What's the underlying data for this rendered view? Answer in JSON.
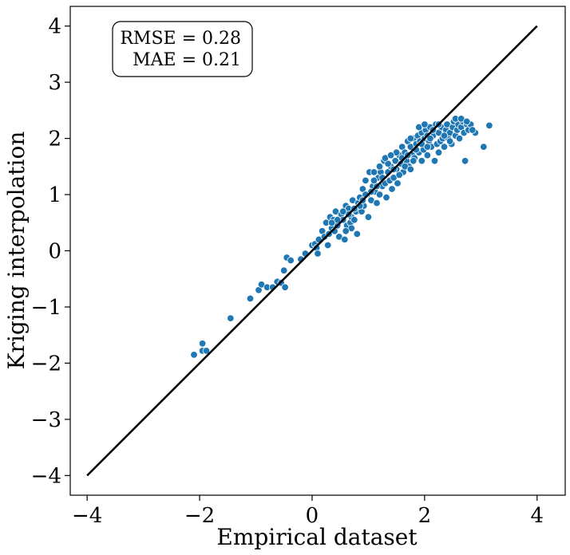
{
  "chart_data": {
    "type": "scatter",
    "xlabel": "Empirical dataset",
    "ylabel": "Kriging interpolation",
    "xlim": [
      -4.3,
      4.5
    ],
    "ylim": [
      -4.35,
      4.35
    ],
    "x_ticks": [
      -4,
      -2,
      0,
      2,
      4
    ],
    "y_ticks": [
      -4,
      -3,
      -2,
      -1,
      0,
      1,
      2,
      3,
      4
    ],
    "x_tick_labels": [
      "−4",
      "−2",
      "0",
      "2",
      "4"
    ],
    "y_tick_labels": [
      "−4",
      "−3",
      "−2",
      "−1",
      "0",
      "1",
      "2",
      "3",
      "4"
    ],
    "grid": false,
    "identity_line": {
      "from": [
        -4,
        -4
      ],
      "to": [
        4,
        4
      ],
      "color": "#000000"
    },
    "metrics": {
      "rmse": "RMSE = 0.28",
      "mae": "MAE = 0.21"
    },
    "point_color": "#1f77b4",
    "points": [
      [
        -2.1,
        -1.85
      ],
      [
        -1.95,
        -1.65
      ],
      [
        -1.95,
        -1.78
      ],
      [
        -1.88,
        -1.78
      ],
      [
        -1.45,
        -1.2
      ],
      [
        -1.1,
        -0.85
      ],
      [
        -0.95,
        -0.7
      ],
      [
        -0.9,
        -0.6
      ],
      [
        -0.8,
        -0.65
      ],
      [
        -0.7,
        -0.65
      ],
      [
        -0.62,
        -0.55
      ],
      [
        -0.55,
        -0.57
      ],
      [
        -0.5,
        -0.35
      ],
      [
        -0.48,
        -0.65
      ],
      [
        -0.45,
        -0.12
      ],
      [
        -0.38,
        -0.17
      ],
      [
        -0.2,
        -0.15
      ],
      [
        -0.12,
        -0.05
      ],
      [
        0.0,
        0.1
      ],
      [
        0.05,
        0.12
      ],
      [
        0.08,
        0.05
      ],
      [
        0.1,
        -0.05
      ],
      [
        0.12,
        0.2
      ],
      [
        0.18,
        0.35
      ],
      [
        0.22,
        0.25
      ],
      [
        0.25,
        0.5
      ],
      [
        0.28,
        0.1
      ],
      [
        0.3,
        0.3
      ],
      [
        0.32,
        0.6
      ],
      [
        0.35,
        0.4
      ],
      [
        0.38,
        0.55
      ],
      [
        0.4,
        0.35
      ],
      [
        0.42,
        0.7
      ],
      [
        0.45,
        0.45
      ],
      [
        0.48,
        0.25
      ],
      [
        0.5,
        0.6
      ],
      [
        0.52,
        0.65
      ],
      [
        0.55,
        0.55
      ],
      [
        0.58,
        0.2
      ],
      [
        0.6,
        0.8
      ],
      [
        0.62,
        0.45
      ],
      [
        0.65,
        0.75
      ],
      [
        0.68,
        0.5
      ],
      [
        0.7,
        0.6
      ],
      [
        0.72,
        0.9
      ],
      [
        0.75,
        0.55
      ],
      [
        0.78,
        0.7
      ],
      [
        0.8,
        0.3
      ],
      [
        0.82,
        0.85
      ],
      [
        0.85,
        0.95
      ],
      [
        0.88,
        0.7
      ],
      [
        0.9,
        1.1
      ],
      [
        0.92,
        0.8
      ],
      [
        0.95,
        1.25
      ],
      [
        0.98,
        1.0
      ],
      [
        1.0,
        0.6
      ],
      [
        1.02,
        1.4
      ],
      [
        1.05,
        0.9
      ],
      [
        1.08,
        1.15
      ],
      [
        1.1,
        1.4
      ],
      [
        1.12,
        1.05
      ],
      [
        1.15,
        0.85
      ],
      [
        1.18,
        1.3
      ],
      [
        1.2,
        1.0
      ],
      [
        1.22,
        1.4
      ],
      [
        1.25,
        1.15
      ],
      [
        1.28,
        1.6
      ],
      [
        1.3,
        1.2
      ],
      [
        1.32,
        0.95
      ],
      [
        1.35,
        1.4
      ],
      [
        1.38,
        1.25
      ],
      [
        1.4,
        1.5
      ],
      [
        1.42,
        1.1
      ],
      [
        1.45,
        1.3
      ],
      [
        1.48,
        1.6
      ],
      [
        1.5,
        1.45
      ],
      [
        1.52,
        1.2
      ],
      [
        1.55,
        1.7
      ],
      [
        1.58,
        1.55
      ],
      [
        1.6,
        1.85
      ],
      [
        1.62,
        1.4
      ],
      [
        1.65,
        1.75
      ],
      [
        1.68,
        1.6
      ],
      [
        1.7,
        1.95
      ],
      [
        1.72,
        1.5
      ],
      [
        1.75,
        1.85
      ],
      [
        1.78,
        1.7
      ],
      [
        1.8,
        2.0
      ],
      [
        1.82,
        1.65
      ],
      [
        1.85,
        1.9
      ],
      [
        1.88,
        2.05
      ],
      [
        1.9,
        1.75
      ],
      [
        1.92,
        1.95
      ],
      [
        1.95,
        2.1
      ],
      [
        1.98,
        1.8
      ],
      [
        2.0,
        2.0
      ],
      [
        2.02,
        2.15
      ],
      [
        2.05,
        1.7
      ],
      [
        2.08,
        1.95
      ],
      [
        2.1,
        2.2
      ],
      [
        2.12,
        1.85
      ],
      [
        2.15,
        2.05
      ],
      [
        2.18,
        1.6
      ],
      [
        2.2,
        2.25
      ],
      [
        2.22,
        1.9
      ],
      [
        2.25,
        2.1
      ],
      [
        2.28,
        1.95
      ],
      [
        2.3,
        2.2
      ],
      [
        2.32,
        2.0
      ],
      [
        2.35,
        1.85
      ],
      [
        2.38,
        2.15
      ],
      [
        2.4,
        2.25
      ],
      [
        2.42,
        2.0
      ],
      [
        2.45,
        2.1
      ],
      [
        2.48,
        1.9
      ],
      [
        2.5,
        2.2
      ],
      [
        2.52,
        2.3
      ],
      [
        2.55,
        2.05
      ],
      [
        2.58,
        2.15
      ],
      [
        2.6,
        2.25
      ],
      [
        2.62,
        2.0
      ],
      [
        2.65,
        2.2
      ],
      [
        2.68,
        2.3
      ],
      [
        2.7,
        2.1
      ],
      [
        2.72,
        1.6
      ],
      [
        2.75,
        2.25
      ],
      [
        2.78,
        2.15
      ],
      [
        2.82,
        2.25
      ],
      [
        2.9,
        2.1
      ],
      [
        3.05,
        1.85
      ],
      [
        3.15,
        2.23
      ],
      [
        1.6,
        1.65
      ],
      [
        1.7,
        1.7
      ],
      [
        1.75,
        2.0
      ],
      [
        1.85,
        1.8
      ],
      [
        1.95,
        1.9
      ],
      [
        2.05,
        2.05
      ],
      [
        2.15,
        2.15
      ],
      [
        2.25,
        2.25
      ],
      [
        2.35,
        2.05
      ],
      [
        1.9,
        2.2
      ],
      [
        2.0,
        2.25
      ],
      [
        2.1,
        2.0
      ],
      [
        1.8,
        1.6
      ],
      [
        1.65,
        1.5
      ],
      [
        1.45,
        1.45
      ],
      [
        1.35,
        1.55
      ],
      [
        1.25,
        1.3
      ],
      [
        1.15,
        1.15
      ],
      [
        1.05,
        1.05
      ],
      [
        0.95,
        1.0
      ],
      [
        0.85,
        0.8
      ],
      [
        0.75,
        0.75
      ],
      [
        0.65,
        0.65
      ],
      [
        0.55,
        0.7
      ],
      [
        0.45,
        0.55
      ],
      [
        0.35,
        0.5
      ],
      [
        1.55,
        1.35
      ],
      [
        1.75,
        1.45
      ],
      [
        1.95,
        1.6
      ],
      [
        2.05,
        1.85
      ],
      [
        2.25,
        1.75
      ],
      [
        2.45,
        1.95
      ],
      [
        2.55,
        2.35
      ],
      [
        2.65,
        2.35
      ],
      [
        2.75,
        2.3
      ],
      [
        2.85,
        2.15
      ],
      [
        1.1,
        1.25
      ],
      [
        1.2,
        1.5
      ],
      [
        0.9,
        0.9
      ],
      [
        0.7,
        0.4
      ],
      [
        0.6,
        0.35
      ],
      [
        1.3,
        1.65
      ],
      [
        1.5,
        1.75
      ],
      [
        1.4,
        1.7
      ]
    ]
  }
}
